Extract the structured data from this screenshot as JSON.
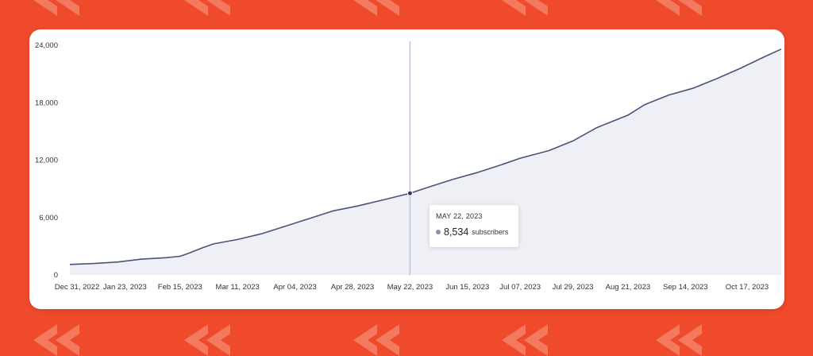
{
  "background": {
    "color": "#ee4a2b",
    "mark_color": "#f47a5f",
    "mark_icon": "rewind-chevron-icon"
  },
  "chart_data": {
    "type": "area",
    "title": "",
    "xlabel": "",
    "ylabel": "",
    "ylim": [
      0,
      24000
    ],
    "grid": false,
    "line_color": "#4a5478",
    "fill_color": "#eef0f6",
    "y_ticks": [
      "0",
      "6,000",
      "12,000",
      "18,000",
      "24,000"
    ],
    "y_tick_values": [
      0,
      6000,
      12000,
      18000,
      24000
    ],
    "x_ticks": [
      "Dec 31, 2022",
      "Jan 23, 2023",
      "Feb 15, 2023",
      "Mar 11, 2023",
      "Apr 04, 2023",
      "Apr 28, 2023",
      "May 22, 2023",
      "Jun 15, 2023",
      "Jul 07, 2023",
      "Jul 29, 2023",
      "Aug 21, 2023",
      "Sep 14, 2023",
      "Oct 17, 2023"
    ],
    "x_tick_days": [
      0,
      23,
      46,
      70,
      94,
      118,
      142,
      166,
      188,
      210,
      233,
      257,
      290
    ],
    "series": [
      {
        "name": "",
        "x_days": [
          0,
          10,
          20,
          30,
          40,
          46,
          50,
          55,
          60,
          70,
          80,
          90,
          100,
          110,
          120,
          130,
          142,
          150,
          160,
          170,
          180,
          188,
          200,
          210,
          220,
          233,
          240,
          250,
          260,
          270,
          280,
          290,
          297
        ],
        "values": [
          1100,
          1200,
          1350,
          1650,
          1800,
          1950,
          2300,
          2800,
          3250,
          3700,
          4300,
          5100,
          5900,
          6700,
          7200,
          7800,
          8534,
          9200,
          10000,
          10700,
          11500,
          12200,
          13000,
          14000,
          15400,
          16700,
          17800,
          18800,
          19500,
          20500,
          21600,
          22800,
          23600
        ]
      }
    ],
    "highlight": {
      "x_day": 142,
      "date": "MAY 22, 2023",
      "value": 8534,
      "value_label": "8,534",
      "unit": "subscribers"
    }
  }
}
